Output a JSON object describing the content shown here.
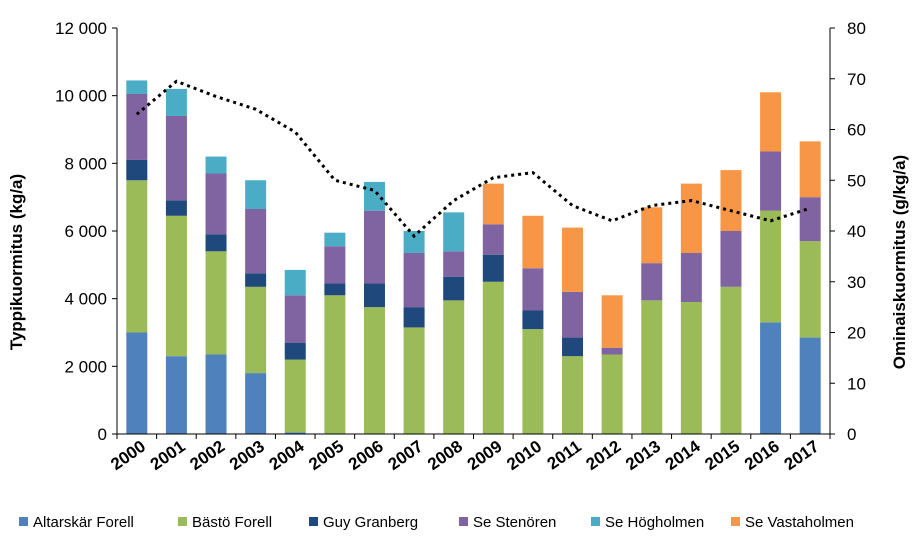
{
  "chart_data": {
    "type": "bar",
    "stacked": true,
    "categories": [
      "2000",
      "2001",
      "2002",
      "2003",
      "2004",
      "2005",
      "2006",
      "2007",
      "2008",
      "2009",
      "2010",
      "2011",
      "2012",
      "2013",
      "2014",
      "2015",
      "2016",
      "2017"
    ],
    "series": [
      {
        "name": "Altarskär Forell",
        "color": "#4F81BD",
        "values": [
          3000,
          2300,
          2350,
          1800,
          50,
          0,
          0,
          0,
          0,
          0,
          0,
          0,
          0,
          0,
          0,
          0,
          3300,
          2850
        ]
      },
      {
        "name": "Bästö Forell",
        "color": "#9BBB59",
        "values": [
          4500,
          4150,
          3050,
          2550,
          2150,
          4100,
          3750,
          3150,
          3950,
          4500,
          3100,
          2300,
          2350,
          3950,
          3900,
          4350,
          3300,
          2850
        ]
      },
      {
        "name": "Guy Granberg",
        "color": "#1F497D",
        "values": [
          600,
          450,
          500,
          400,
          500,
          350,
          700,
          600,
          700,
          800,
          550,
          550,
          0,
          0,
          0,
          0,
          0,
          0
        ]
      },
      {
        "name": "Se Stenören",
        "color": "#8064A2",
        "values": [
          1950,
          2500,
          1800,
          1900,
          1400,
          1100,
          2150,
          1600,
          750,
          900,
          1250,
          1350,
          200,
          1100,
          1450,
          1650,
          1750,
          1300
        ]
      },
      {
        "name": "Se Högholmen",
        "color": "#4BACC6",
        "values": [
          400,
          800,
          500,
          850,
          750,
          400,
          850,
          650,
          1150,
          0,
          0,
          0,
          0,
          0,
          0,
          0,
          0,
          0
        ]
      },
      {
        "name": "Se Vastaholmen",
        "color": "#F79646",
        "values": [
          0,
          0,
          0,
          0,
          0,
          0,
          0,
          0,
          0,
          1200,
          1550,
          1900,
          1550,
          1650,
          2050,
          1800,
          1750,
          1650
        ]
      }
    ],
    "line": {
      "name": "Ominaiskuormitus",
      "axis": "right",
      "style": "dotted",
      "color": "#000000",
      "values": [
        63,
        69.5,
        66.5,
        64,
        59.5,
        50,
        48,
        39,
        46,
        50.5,
        51.5,
        45,
        42,
        45,
        46,
        44,
        42,
        44.5
      ]
    },
    "y_left": {
      "label": "Typpikuormitus (kg/a)",
      "min": 0,
      "max": 12000,
      "ticks": [
        "0",
        "2 000",
        "4 000",
        "6 000",
        "8 000",
        "10 000",
        "12 000"
      ]
    },
    "y_right": {
      "label": "Ominaiskuormitus (g/kg/a)",
      "min": 0,
      "max": 80,
      "ticks": [
        "0",
        "10",
        "20",
        "30",
        "40",
        "50",
        "60",
        "70",
        "80"
      ]
    },
    "xlabel": "",
    "legend_position": "bottom"
  }
}
